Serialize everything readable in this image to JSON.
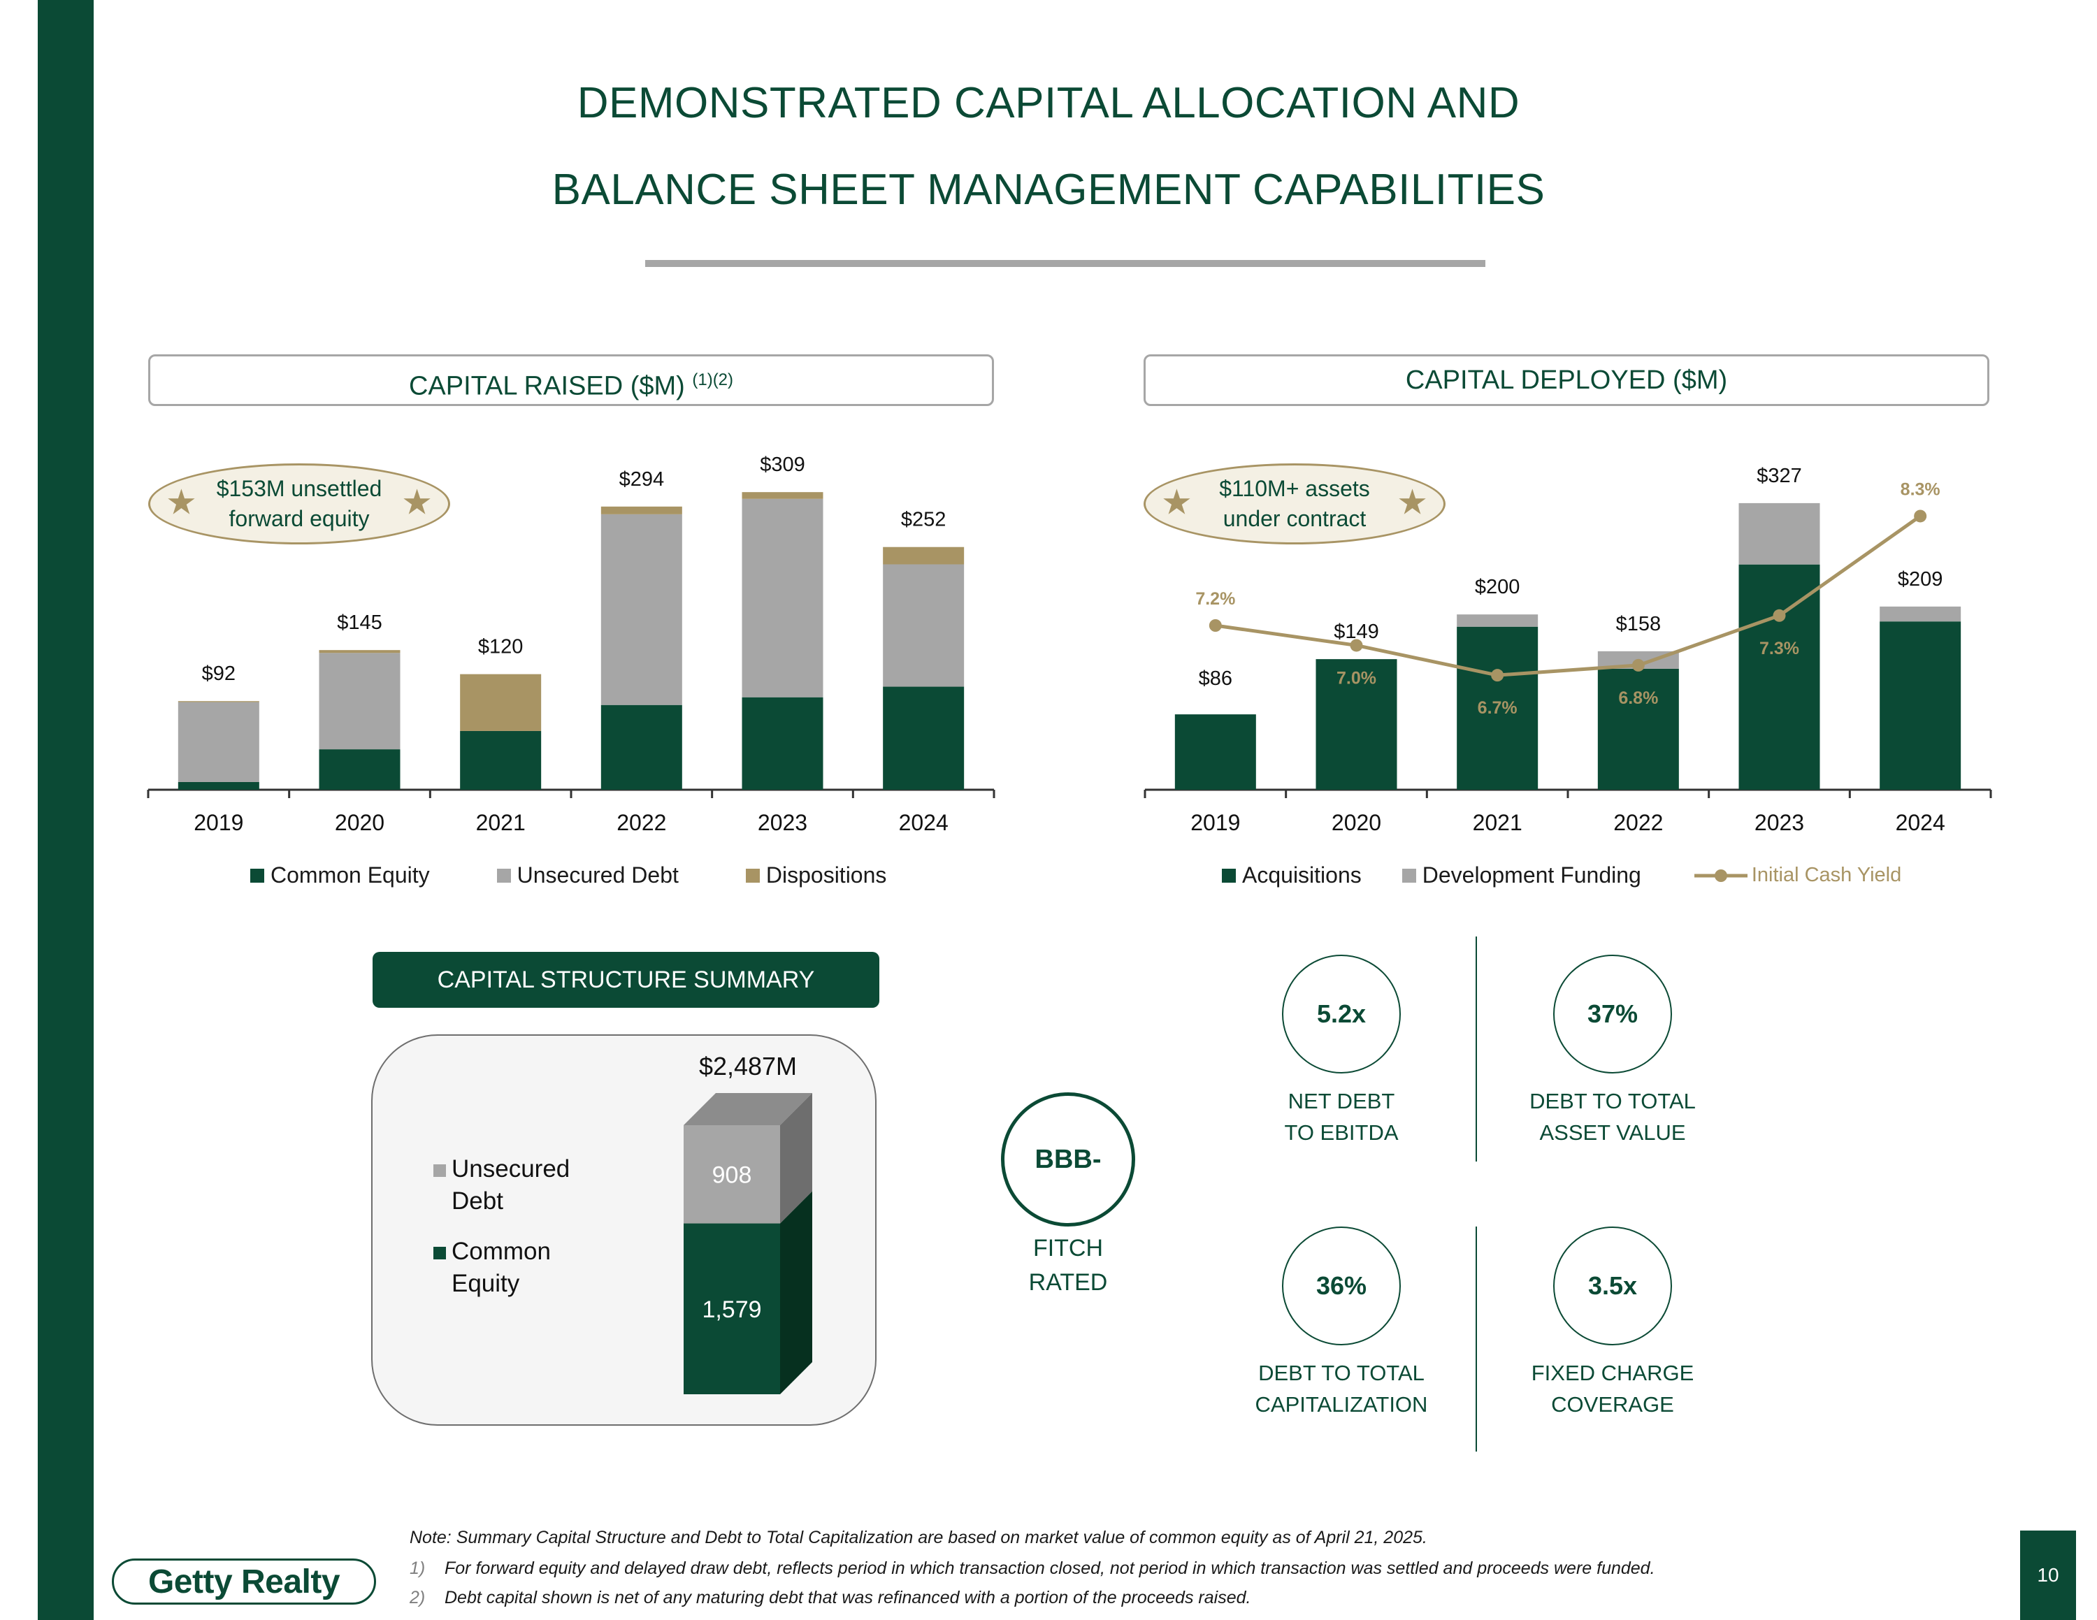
{
  "title": {
    "line1": "DEMONSTRATED CAPITAL ALLOCATION AND",
    "line2": "BALANCE SHEET MANAGEMENT CAPABILITIES"
  },
  "colors": {
    "primary_green": "#0b4a35",
    "gray": "#a6a6a6",
    "tan": "#a89464"
  },
  "capital_raised": {
    "header": "CAPITAL RAISED ($M)",
    "header_sup": "(1)(2)",
    "callout": "$153M unsettled forward equity",
    "star_icon": "★"
  },
  "capital_deployed": {
    "header": "CAPITAL DEPLOYED ($M)",
    "callout": "$110M+ assets under contract",
    "star_icon": "★"
  },
  "chart_data": [
    {
      "type": "bar",
      "stacked": true,
      "title": "CAPITAL RAISED ($M)",
      "categories": [
        "2019",
        "2020",
        "2021",
        "2022",
        "2023",
        "2024"
      ],
      "series": [
        {
          "name": "Common Equity",
          "color": "#0b4a35",
          "values": [
            8,
            42,
            61,
            88,
            96,
            107
          ]
        },
        {
          "name": "Unsecured Debt",
          "color": "#a6a6a6",
          "values": [
            83,
            100,
            0,
            198,
            206,
            127
          ]
        },
        {
          "name": "Dispositions",
          "color": "#a89464",
          "values": [
            1,
            3,
            59,
            8,
            7,
            18
          ]
        }
      ],
      "totals": [
        "$92",
        "$145",
        "$120",
        "$294",
        "$309",
        "$252"
      ],
      "ylim": [
        0,
        320
      ],
      "legend": "bottom"
    },
    {
      "type": "bar",
      "stacked": true,
      "title": "CAPITAL DEPLOYED ($M)",
      "categories": [
        "2019",
        "2020",
        "2021",
        "2022",
        "2023",
        "2024"
      ],
      "series": [
        {
          "name": "Acquisitions",
          "color": "#0b4a35",
          "values": [
            86,
            149,
            186,
            138,
            257,
            192
          ]
        },
        {
          "name": "Development Funding",
          "color": "#a6a6a6",
          "values": [
            0,
            0,
            14,
            20,
            70,
            17
          ]
        }
      ],
      "line": {
        "name": "Initial Cash Yield",
        "color": "#a89464",
        "values": [
          7.2,
          7.0,
          6.7,
          6.8,
          7.3,
          8.3
        ],
        "labels": [
          "7.2%",
          "7.0%",
          "6.7%",
          "6.8%",
          "7.3%",
          "8.3%"
        ],
        "ylim": [
          5.9,
          8.5
        ]
      },
      "totals": [
        "$86",
        "$149",
        "$200",
        "$158",
        "$327",
        "$209"
      ],
      "ylim": [
        0,
        340
      ],
      "legend": "bottom"
    },
    {
      "type": "bar",
      "stacked": true,
      "title": "CAPITAL STRUCTURE SUMMARY",
      "categories": [
        ""
      ],
      "series": [
        {
          "name": "Common Equity",
          "color": "#0b4a35",
          "values": [
            1579
          ],
          "label": "1,579"
        },
        {
          "name": "Unsecured Debt",
          "color": "#a6a6a6",
          "values": [
            908
          ],
          "label": "908"
        }
      ],
      "total": "$2,487M"
    }
  ],
  "capital_structure": {
    "header": "CAPITAL STRUCTURE SUMMARY",
    "legend_debt_1": "Unsecured",
    "legend_debt_2": "Debt",
    "legend_equity_1": "Common",
    "legend_equity_2": "Equity"
  },
  "rating": {
    "value": "BBB-",
    "label_1": "FITCH",
    "label_2": "RATED"
  },
  "metrics": [
    {
      "value": "5.2x",
      "label_1": "NET DEBT",
      "label_2": "TO EBITDA"
    },
    {
      "value": "37%",
      "label_1": "DEBT TO TOTAL",
      "label_2": "ASSET VALUE"
    },
    {
      "value": "36%",
      "label_1": "DEBT TO TOTAL",
      "label_2": "CAPITALIZATION"
    },
    {
      "value": "3.5x",
      "label_1": "FIXED CHARGE",
      "label_2": "COVERAGE"
    }
  ],
  "notes": {
    "main": "Note: Summary Capital Structure and Debt to Total Capitalization are based on market value of common equity as of April 21, 2025.",
    "n1_num": "1)",
    "n1": "For forward equity and delayed draw debt, reflects period in which transaction closed, not period in which transaction was settled and proceeds were funded.",
    "n2_num": "2)",
    "n2": "Debt capital shown is net of any maturing debt that was refinanced with a portion of the proceeds raised."
  },
  "logo": "Getty Realty",
  "page_number": "10"
}
